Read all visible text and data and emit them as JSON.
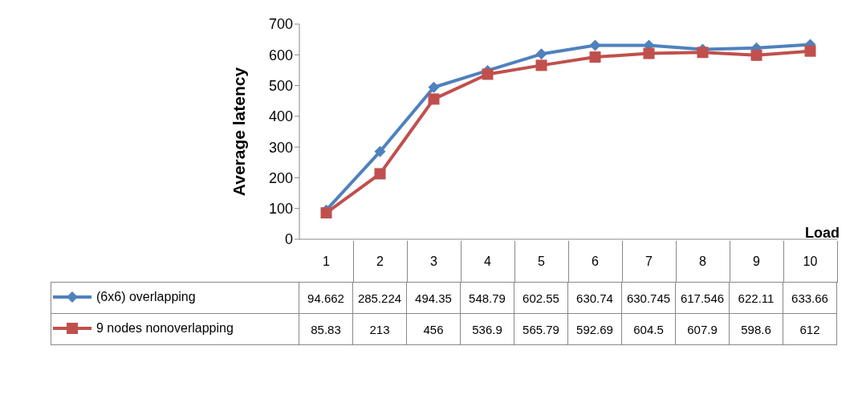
{
  "chart_data": {
    "type": "line",
    "xlabel": "Load",
    "ylabel": "Average latency",
    "categories": [
      "1",
      "2",
      "3",
      "4",
      "5",
      "6",
      "7",
      "8",
      "9",
      "10"
    ],
    "series": [
      {
        "name": "(6x6) overlapping",
        "color": "#4f81bd",
        "marker": "diamond",
        "values": [
          94.662,
          285.224,
          494.35,
          548.79,
          602.55,
          630.74,
          630.745,
          617.546,
          622.11,
          633.66
        ]
      },
      {
        "name": "9 nodes nonoverlapping",
        "color": "#c0504d",
        "marker": "square",
        "values": [
          85.83,
          213,
          456,
          536.9,
          565.79,
          592.69,
          604.5,
          607.9,
          598.6,
          612
        ]
      }
    ],
    "ylim": [
      0,
      700
    ],
    "yticks": [
      0,
      100,
      200,
      300,
      400,
      500,
      600,
      700
    ],
    "legend": "bottom",
    "data_labels": true
  }
}
